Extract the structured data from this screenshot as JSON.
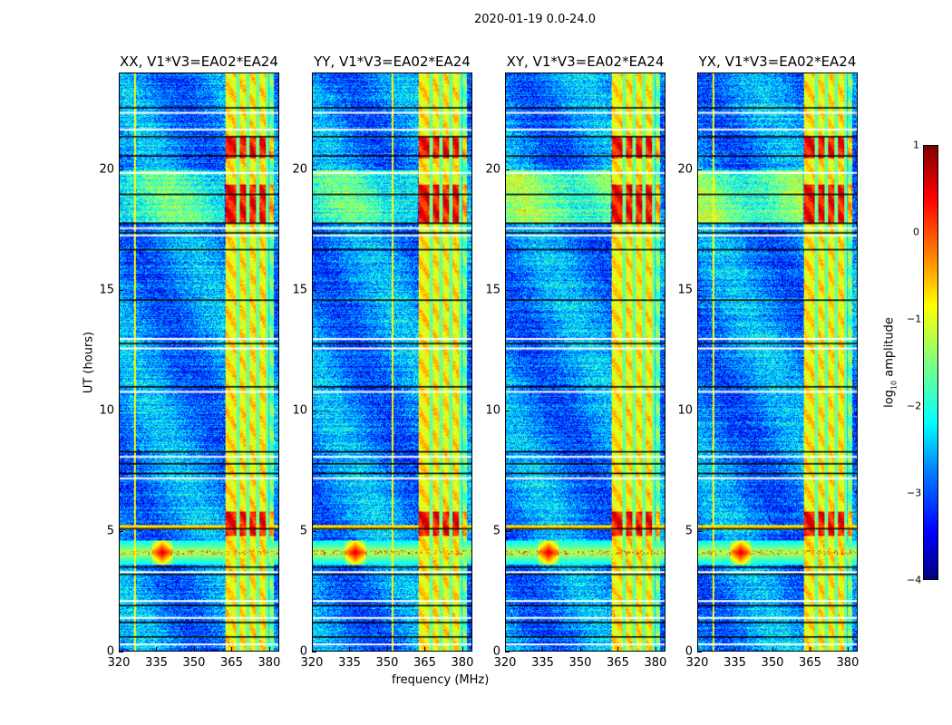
{
  "suptitle": "2020-01-19 0.0-24.0",
  "chart_data": {
    "type": "heatmap",
    "panels": [
      {
        "title": "XX, V1*V3=EA02*EA24",
        "pol": "XX"
      },
      {
        "title": "YY, V1*V3=EA02*EA24",
        "pol": "YY"
      },
      {
        "title": "XY, V1*V3=EA02*EA24",
        "pol": "XY"
      },
      {
        "title": "YX, V1*V3=EA02*EA24",
        "pol": "YX"
      }
    ],
    "xlabel": "frequency (MHz)",
    "ylabel": "UT (hours)",
    "xlim": [
      320,
      384
    ],
    "ylim": [
      0,
      24
    ],
    "xticks": [
      "320",
      "335",
      "350",
      "365",
      "380"
    ],
    "xtick_values": [
      320,
      335,
      350,
      365,
      380
    ],
    "yticks": [
      "0",
      "5",
      "10",
      "15",
      "20"
    ],
    "ytick_values": [
      0,
      5,
      10,
      15,
      20
    ],
    "colormap": "jet",
    "colorbar": {
      "label": "log10 amplitude",
      "label_main": "log",
      "label_sub": "10",
      "label_rest": " amplitude",
      "range": [
        -4,
        1
      ],
      "ticks": [
        "1",
        "0",
        "−1",
        "−2",
        "−3",
        "−4"
      ],
      "tick_values": [
        1,
        0,
        -1,
        -2,
        -3,
        -4
      ]
    },
    "features": {
      "background_level": -2.7,
      "rfi_band_mhz": [
        362.5,
        382
      ],
      "rfi_band_level": -0.8,
      "rfi_band_gaps_mhz": [
        367.5,
        371.5,
        375.5,
        379.5
      ],
      "strong_band_hours": [
        [
          17.8,
          19.4
        ],
        [
          4.8,
          5.8
        ],
        [
          20.5,
          21.4
        ]
      ],
      "burst": {
        "freq_mhz": 337,
        "hours": [
          3.6,
          4.6
        ],
        "level": 0.6
      },
      "flagged_hours_white": [
        0.3,
        1.4,
        2.1,
        3.3,
        7.2,
        8.1,
        10.8,
        12.6,
        13.0,
        17.3,
        17.6,
        19.9,
        21.7,
        22.4
      ],
      "flagged_hours_black": [
        0.6,
        1.2,
        1.9,
        3.2,
        3.5,
        5.1,
        7.4,
        7.8,
        8.3,
        11.0,
        12.8,
        14.6,
        16.7,
        17.4,
        17.8,
        19.0,
        20.6,
        21.4,
        22.6
      ]
    }
  }
}
